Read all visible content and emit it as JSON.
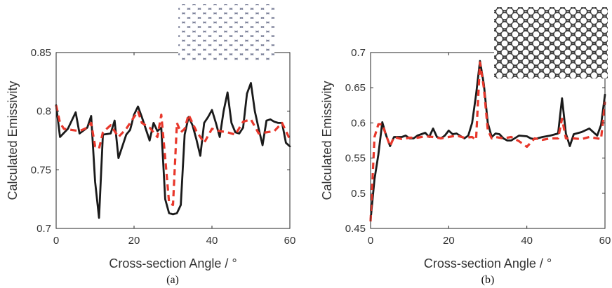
{
  "chart_data": [
    {
      "type": "line",
      "caption": "(a)",
      "xlabel": "Cross-section Angle / °",
      "ylabel": "Calculated Emissivity",
      "xlim": [
        0,
        60
      ],
      "ylim": [
        0.7,
        0.85
      ],
      "xticks": [
        0,
        20,
        40,
        60
      ],
      "yticks": [
        0.7,
        0.75,
        0.8,
        0.85
      ],
      "ytick_labels": [
        "0.7",
        "0.75",
        "0.8",
        "0.85"
      ],
      "inset": "triangular-lattice-of-circular-holes-pattern",
      "series": [
        {
          "style": "solid",
          "color": "#1a1a1a",
          "x": [
            0,
            1,
            3,
            5,
            6,
            8,
            9,
            10,
            11,
            12,
            14,
            15,
            16,
            18,
            19,
            20,
            21,
            22,
            24,
            25,
            26,
            27,
            28,
            29,
            30,
            31,
            32,
            33,
            34,
            35,
            36,
            37,
            38,
            39,
            40,
            41,
            42,
            43,
            44,
            45,
            46,
            47,
            48,
            49,
            50,
            51,
            52,
            53,
            54,
            55,
            56,
            57,
            58,
            59,
            60
          ],
          "y": [
            0.805,
            0.778,
            0.785,
            0.799,
            0.781,
            0.786,
            0.796,
            0.74,
            0.709,
            0.78,
            0.781,
            0.792,
            0.76,
            0.78,
            0.784,
            0.797,
            0.804,
            0.795,
            0.775,
            0.79,
            0.783,
            0.786,
            0.725,
            0.713,
            0.712,
            0.713,
            0.72,
            0.78,
            0.795,
            0.788,
            0.776,
            0.762,
            0.79,
            0.795,
            0.801,
            0.79,
            0.778,
            0.8,
            0.816,
            0.79,
            0.782,
            0.781,
            0.786,
            0.815,
            0.824,
            0.8,
            0.785,
            0.771,
            0.792,
            0.793,
            0.791,
            0.79,
            0.79,
            0.773,
            0.77
          ]
        },
        {
          "style": "dashed",
          "color": "#e8372b",
          "x": [
            0,
            1,
            2,
            4,
            6,
            8,
            9,
            10,
            11,
            12,
            14,
            16,
            18,
            20,
            21,
            22,
            24,
            26,
            27,
            28,
            29,
            30,
            31,
            32,
            33,
            34,
            36,
            38,
            40,
            42,
            44,
            46,
            48,
            50,
            52,
            54,
            56,
            58,
            60
          ],
          "y": [
            0.805,
            0.79,
            0.785,
            0.784,
            0.783,
            0.786,
            0.79,
            0.77,
            0.768,
            0.782,
            0.788,
            0.778,
            0.785,
            0.795,
            0.8,
            0.79,
            0.786,
            0.778,
            0.797,
            0.76,
            0.722,
            0.72,
            0.79,
            0.782,
            0.785,
            0.797,
            0.783,
            0.773,
            0.785,
            0.783,
            0.782,
            0.78,
            0.791,
            0.793,
            0.781,
            0.782,
            0.783,
            0.79,
            0.776
          ]
        }
      ]
    },
    {
      "type": "line",
      "caption": "(b)",
      "xlabel": "Cross-section Angle / °",
      "ylabel": "Calculated Emissivity",
      "xlim": [
        0,
        60
      ],
      "ylim": [
        0.45,
        0.7
      ],
      "xticks": [
        0,
        20,
        40,
        60
      ],
      "yticks": [
        0.45,
        0.5,
        0.55,
        0.6,
        0.65,
        0.7
      ],
      "ytick_labels": [
        "0.45",
        "0.5",
        "0.55",
        "0.6",
        "0.65",
        "0.7"
      ],
      "inset": "triangular-lattice-of-thick-ring-pattern",
      "series": [
        {
          "style": "solid",
          "color": "#1a1a1a",
          "x": [
            0,
            1,
            2,
            3,
            4,
            5,
            6,
            8,
            9,
            10,
            11,
            12,
            14,
            15,
            16,
            17,
            18,
            19,
            20,
            21,
            22,
            24,
            25,
            26,
            27,
            28,
            29,
            30,
            31,
            32,
            33,
            34,
            35,
            36,
            38,
            40,
            41,
            42,
            44,
            46,
            48,
            49,
            50,
            51,
            52,
            54,
            56,
            58,
            59,
            60
          ],
          "y": [
            0.462,
            0.52,
            0.555,
            0.601,
            0.582,
            0.567,
            0.58,
            0.58,
            0.582,
            0.578,
            0.578,
            0.582,
            0.586,
            0.58,
            0.592,
            0.58,
            0.578,
            0.582,
            0.589,
            0.584,
            0.585,
            0.578,
            0.582,
            0.6,
            0.64,
            0.688,
            0.655,
            0.6,
            0.58,
            0.585,
            0.584,
            0.578,
            0.575,
            0.575,
            0.582,
            0.581,
            0.578,
            0.577,
            0.58,
            0.582,
            0.585,
            0.635,
            0.585,
            0.567,
            0.584,
            0.587,
            0.592,
            0.582,
            0.597,
            0.64
          ]
        },
        {
          "style": "dashed",
          "color": "#e8372b",
          "x": [
            0,
            1,
            2,
            3,
            4,
            5,
            6,
            8,
            10,
            12,
            14,
            16,
            18,
            20,
            22,
            24,
            26,
            27,
            28,
            29,
            30,
            31,
            32,
            34,
            36,
            38,
            40,
            42,
            44,
            46,
            48,
            49,
            50,
            52,
            54,
            56,
            58,
            59,
            60
          ],
          "y": [
            0.46,
            0.58,
            0.598,
            0.598,
            0.582,
            0.567,
            0.58,
            0.577,
            0.579,
            0.579,
            0.581,
            0.58,
            0.578,
            0.58,
            0.582,
            0.579,
            0.58,
            0.576,
            0.686,
            0.65,
            0.59,
            0.578,
            0.58,
            0.578,
            0.58,
            0.574,
            0.566,
            0.578,
            0.576,
            0.578,
            0.578,
            0.606,
            0.578,
            0.578,
            0.577,
            0.58,
            0.578,
            0.577,
            0.63
          ]
        }
      ]
    }
  ]
}
